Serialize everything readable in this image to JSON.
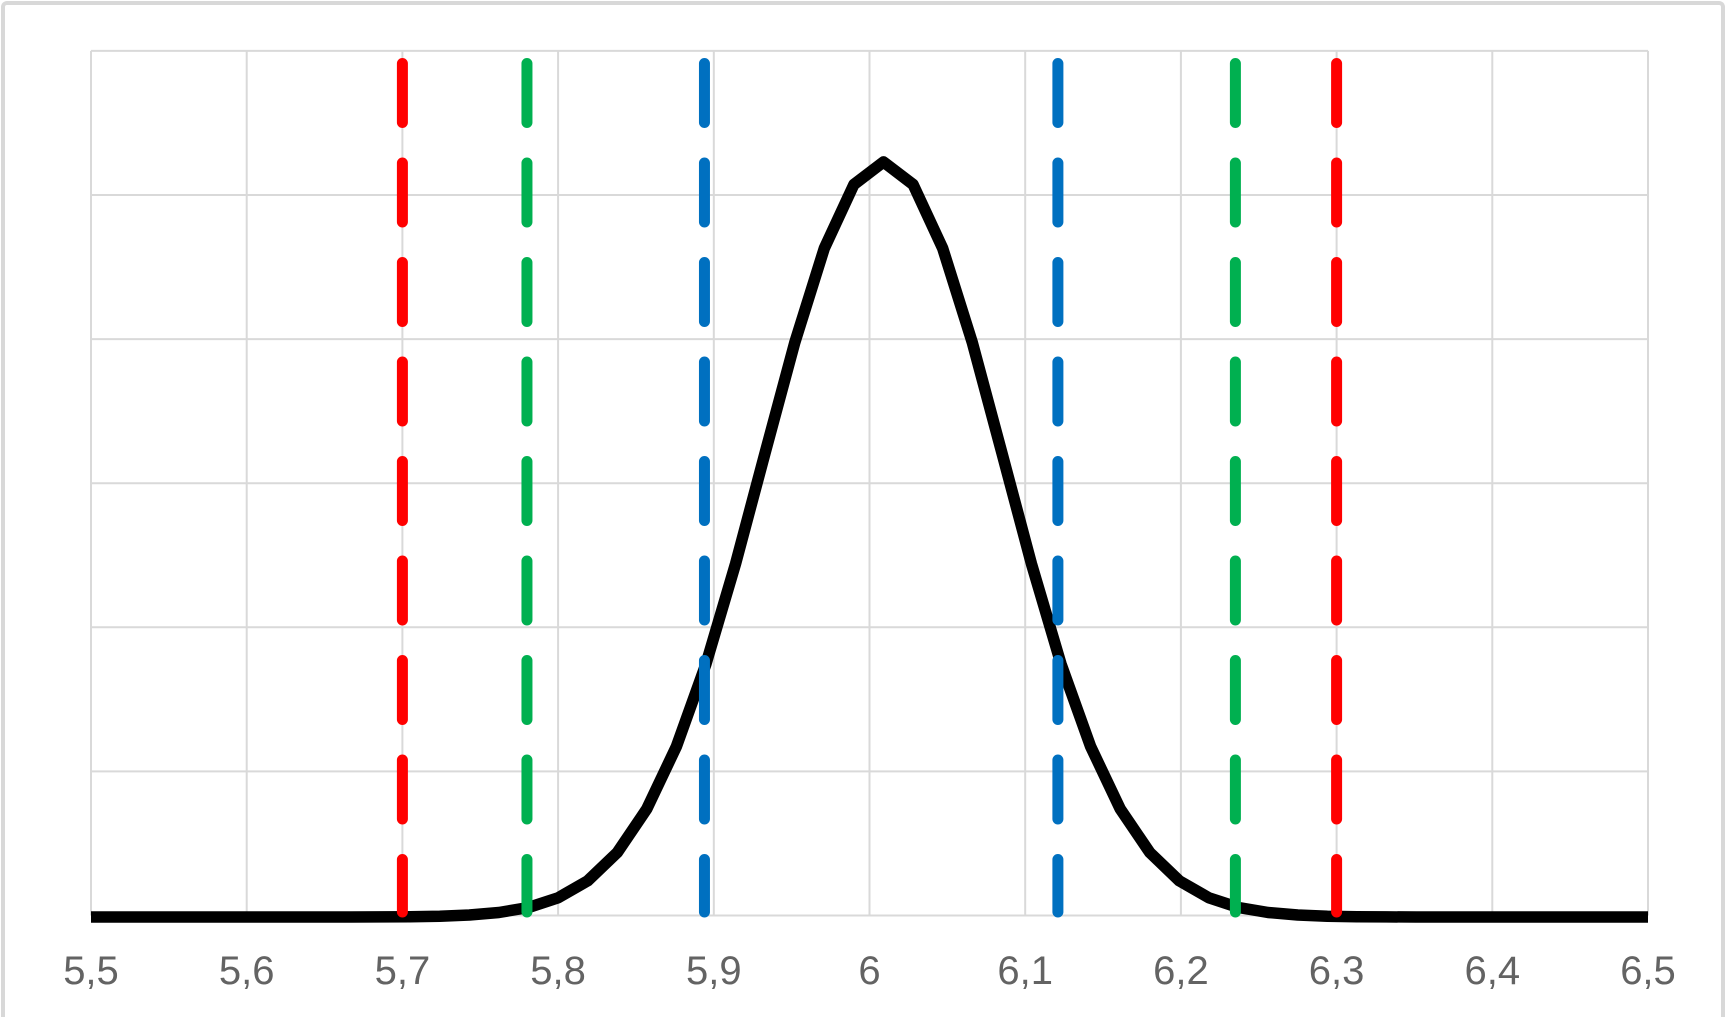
{
  "chart_data": {
    "type": "line",
    "title": "",
    "x_axis": {
      "min": 5.5,
      "max": 6.5,
      "tick_step": 0.1,
      "tick_labels": [
        "5,5",
        "5,6",
        "5,7",
        "5,8",
        "5,9",
        "6",
        "6,1",
        "6,2",
        "6,3",
        "6,4",
        "6,5"
      ],
      "decimal_separator": ","
    },
    "y_axis": {
      "min": 0,
      "max": 6,
      "gridline_step": 1,
      "labels_visible": false
    },
    "grid": {
      "visible": true,
      "color": "#D9D9D9"
    },
    "series": [
      {
        "name": "normal-distribution-curve",
        "shape": "normal-density",
        "color": "#000000",
        "mean": 6.009,
        "sigma": 0.0771,
        "peak_height": 5.24,
        "point_spacing": 0.019,
        "x_range": [
          5.5,
          6.5
        ]
      }
    ],
    "vertical_lines": [
      {
        "name": "lower-red-limit",
        "x": 5.7,
        "color": "#FF0000"
      },
      {
        "name": "lower-green-limit",
        "x": 5.78,
        "color": "#00B050"
      },
      {
        "name": "lower-blue-limit",
        "x": 5.894,
        "color": "#0070C0"
      },
      {
        "name": "upper-blue-limit",
        "x": 6.121,
        "color": "#0070C0"
      },
      {
        "name": "upper-green-limit",
        "x": 6.235,
        "color": "#00B050"
      },
      {
        "name": "upper-red-limit",
        "x": 6.3,
        "color": "#FF0000"
      }
    ],
    "styles": {
      "curve_width": 11.5,
      "dash_width": 11,
      "dash_pattern": [
        59,
        40.5
      ],
      "axis_label_color": "#636363",
      "axis_label_size": 40
    }
  }
}
